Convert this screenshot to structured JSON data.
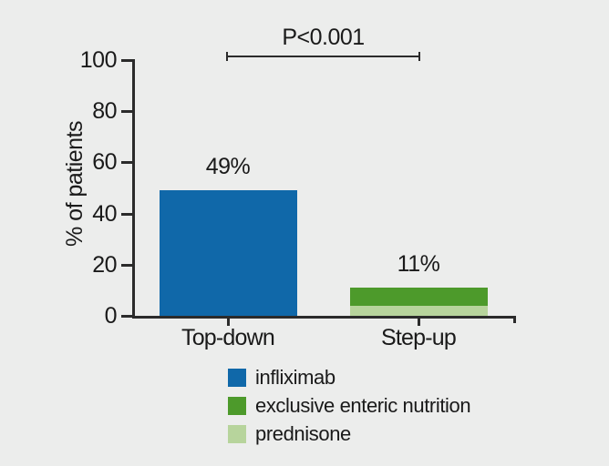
{
  "page": {
    "background": "#ECEDEC"
  },
  "chart_data": {
    "type": "bar",
    "stacked": true,
    "title": "",
    "xlabel": "",
    "ylabel": "% of patients",
    "ylim": [
      0,
      100
    ],
    "yticks": [
      0,
      20,
      40,
      60,
      80,
      100
    ],
    "grid": false,
    "legend_position": "bottom-center",
    "categories": [
      "Top-down",
      "Step-up"
    ],
    "bars": [
      {
        "category": "Top-down",
        "total": 49,
        "total_label": "49%",
        "segments": [
          {
            "name": "infliximab",
            "value": 49,
            "color": "#1068A9"
          }
        ]
      },
      {
        "category": "Step-up",
        "total": 11,
        "total_label": "11%",
        "segments": [
          {
            "name": "prednisone",
            "value": 4,
            "color": "#B7D49C"
          },
          {
            "name": "exclusive enteric nutrition",
            "value": 7,
            "color": "#4D9A2B"
          }
        ]
      }
    ],
    "annotation": {
      "text": "P<0.001",
      "connects": [
        "Top-down",
        "Step-up"
      ]
    },
    "legend": [
      {
        "label": "infliximab",
        "color": "#1068A9"
      },
      {
        "label": "exclusive enteric nutrition",
        "color": "#4D9A2B"
      },
      {
        "label": "prednisone",
        "color": "#B7D49C"
      }
    ],
    "colors": {
      "axis": "#2B2B2B",
      "text": "#1A1A1A",
      "background": "#ECEDEC"
    }
  }
}
